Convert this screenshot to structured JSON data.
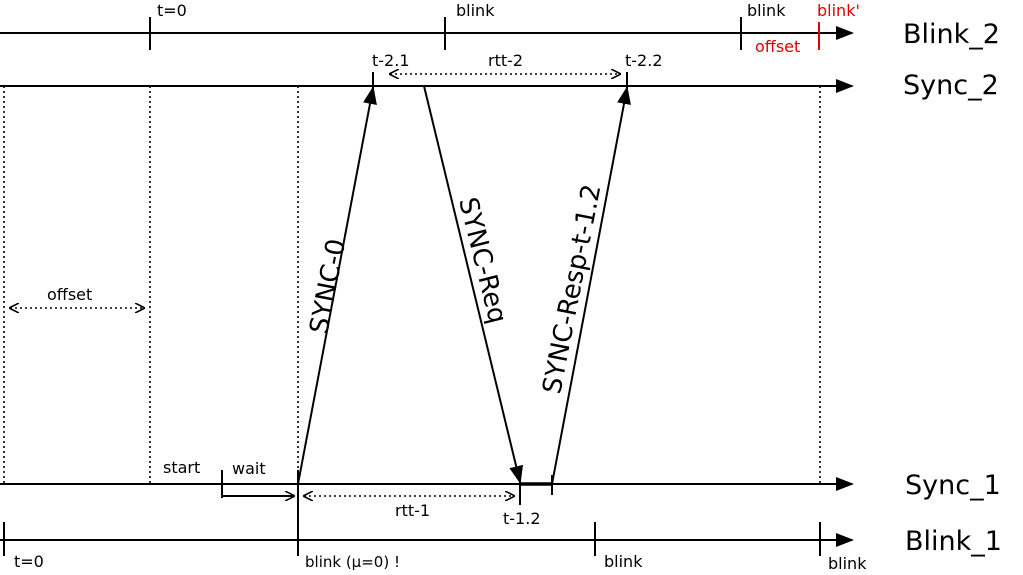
{
  "timelines": {
    "blink2": "Blink_2",
    "sync2": "Sync_2",
    "sync1": "Sync_1",
    "blink1": "Blink_1"
  },
  "top_labels": {
    "t0": "t=0",
    "blink_a": "blink",
    "blink_b": "blink",
    "blink_prime": "blink'",
    "offset": "offset"
  },
  "sync2_labels": {
    "t21": "t-2.1",
    "rtt2": "rtt-2",
    "t22": "t-2.2"
  },
  "messages": {
    "sync0": "SYNC-0",
    "syncreq": "SYNC-Req",
    "syncresp": "SYNC-Resp-t-1.2"
  },
  "middle": {
    "offset": "offset"
  },
  "sync1_labels": {
    "start": "start",
    "wait": "wait",
    "rtt1": "rtt-1",
    "t12": "t-1.2"
  },
  "bottom_labels": {
    "t0": "t=0",
    "blink_mu": "blink (μ=0) !",
    "blink_a": "blink",
    "blink_b": "blink"
  },
  "colors": {
    "line": "#000000",
    "highlight": "#e00000"
  }
}
